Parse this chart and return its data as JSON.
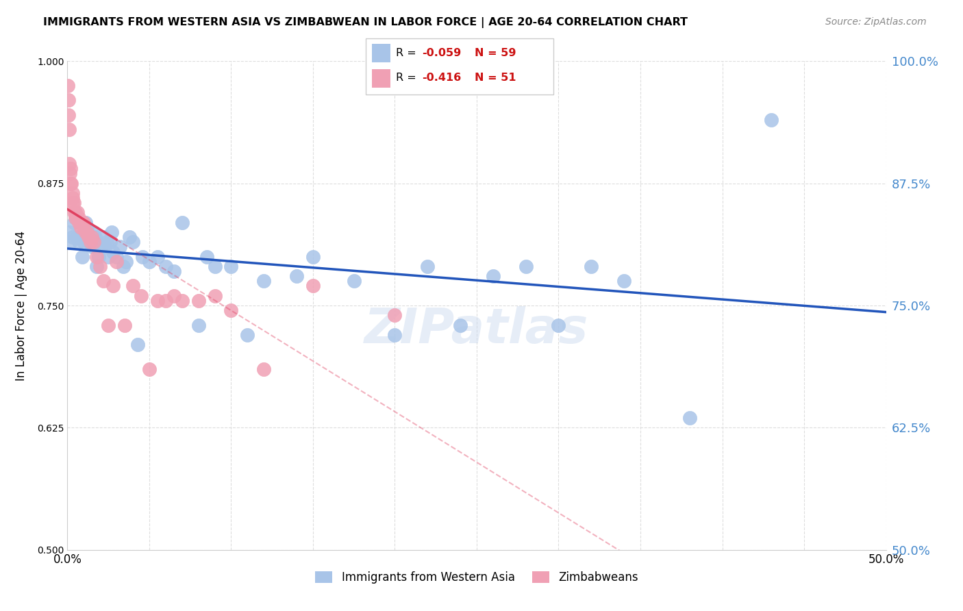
{
  "title": "IMMIGRANTS FROM WESTERN ASIA VS ZIMBABWEAN IN LABOR FORCE | AGE 20-64 CORRELATION CHART",
  "source": "Source: ZipAtlas.com",
  "ylabel": "In Labor Force | Age 20-64",
  "xlim": [
    0.0,
    0.5
  ],
  "ylim": [
    0.5,
    1.0
  ],
  "yticks": [
    0.5,
    0.625,
    0.75,
    0.875,
    1.0
  ],
  "xticks": [
    0.0,
    0.05,
    0.1,
    0.15,
    0.2,
    0.25,
    0.3,
    0.35,
    0.4,
    0.45,
    0.5
  ],
  "blue_R": -0.059,
  "blue_N": 59,
  "pink_R": -0.416,
  "pink_N": 51,
  "blue_color": "#A8C4E8",
  "pink_color": "#F0A0B4",
  "blue_line_color": "#2255BB",
  "pink_line_color": "#E04060",
  "watermark": "ZIPatlas",
  "legend_label_blue": "Immigrants from Western Asia",
  "legend_label_pink": "Zimbabweans",
  "blue_scatter_x": [
    0.001,
    0.002,
    0.003,
    0.004,
    0.005,
    0.006,
    0.007,
    0.008,
    0.009,
    0.01,
    0.011,
    0.012,
    0.013,
    0.014,
    0.015,
    0.016,
    0.017,
    0.018,
    0.019,
    0.02,
    0.022,
    0.023,
    0.024,
    0.025,
    0.026,
    0.027,
    0.028,
    0.03,
    0.032,
    0.034,
    0.036,
    0.038,
    0.04,
    0.043,
    0.046,
    0.05,
    0.055,
    0.06,
    0.065,
    0.07,
    0.08,
    0.085,
    0.09,
    0.1,
    0.11,
    0.12,
    0.14,
    0.15,
    0.175,
    0.2,
    0.22,
    0.24,
    0.26,
    0.28,
    0.3,
    0.32,
    0.34,
    0.38,
    0.43
  ],
  "blue_scatter_y": [
    0.825,
    0.815,
    0.82,
    0.835,
    0.84,
    0.82,
    0.815,
    0.82,
    0.8,
    0.815,
    0.835,
    0.83,
    0.815,
    0.82,
    0.81,
    0.825,
    0.82,
    0.79,
    0.8,
    0.81,
    0.82,
    0.81,
    0.815,
    0.8,
    0.815,
    0.825,
    0.805,
    0.8,
    0.81,
    0.79,
    0.795,
    0.82,
    0.815,
    0.71,
    0.8,
    0.795,
    0.8,
    0.79,
    0.785,
    0.835,
    0.73,
    0.8,
    0.79,
    0.79,
    0.72,
    0.775,
    0.78,
    0.8,
    0.775,
    0.72,
    0.79,
    0.73,
    0.78,
    0.79,
    0.73,
    0.79,
    0.775,
    0.635,
    0.94
  ],
  "pink_scatter_x": [
    0.0003,
    0.0005,
    0.0007,
    0.001,
    0.001,
    0.0015,
    0.002,
    0.002,
    0.0025,
    0.003,
    0.003,
    0.003,
    0.004,
    0.004,
    0.005,
    0.005,
    0.006,
    0.006,
    0.007,
    0.007,
    0.008,
    0.008,
    0.009,
    0.01,
    0.01,
    0.011,
    0.012,
    0.013,
    0.014,
    0.015,
    0.016,
    0.018,
    0.02,
    0.022,
    0.025,
    0.028,
    0.03,
    0.035,
    0.04,
    0.045,
    0.05,
    0.055,
    0.06,
    0.065,
    0.07,
    0.08,
    0.09,
    0.1,
    0.12,
    0.15,
    0.2
  ],
  "pink_scatter_y": [
    0.975,
    0.96,
    0.945,
    0.93,
    0.895,
    0.885,
    0.89,
    0.875,
    0.875,
    0.865,
    0.86,
    0.855,
    0.855,
    0.845,
    0.845,
    0.84,
    0.84,
    0.845,
    0.84,
    0.835,
    0.835,
    0.83,
    0.835,
    0.835,
    0.83,
    0.825,
    0.825,
    0.82,
    0.815,
    0.82,
    0.815,
    0.8,
    0.79,
    0.775,
    0.73,
    0.77,
    0.795,
    0.73,
    0.77,
    0.76,
    0.685,
    0.755,
    0.755,
    0.76,
    0.755,
    0.755,
    0.76,
    0.745,
    0.685,
    0.77,
    0.74
  ],
  "pink_line_solid_end": 0.03,
  "pink_line_dashed_end": 0.5
}
